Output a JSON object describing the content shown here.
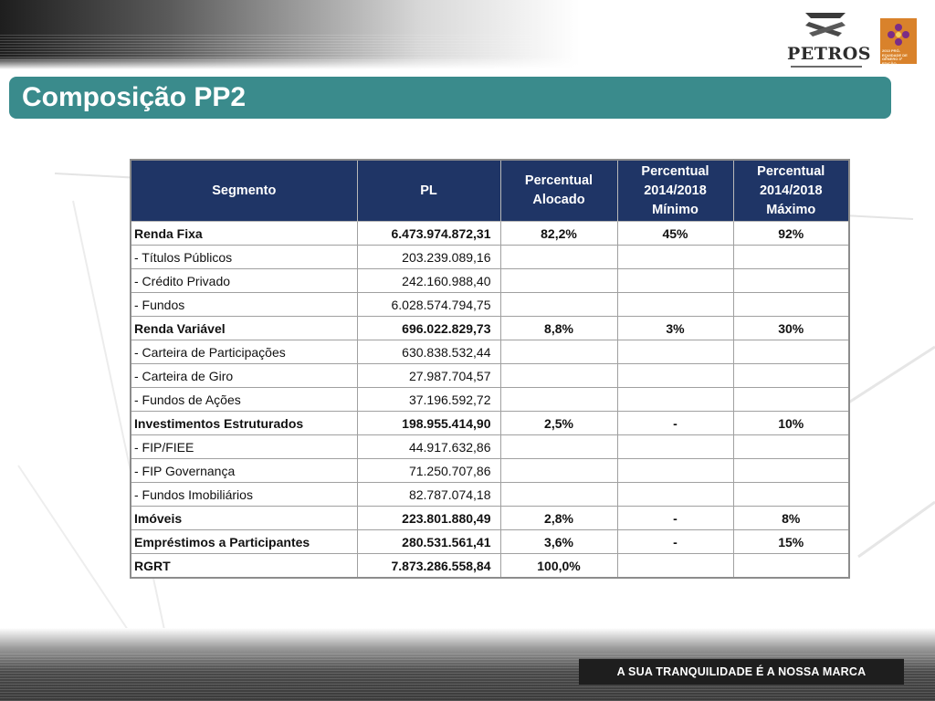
{
  "header": {
    "title": "Composição PP2",
    "logo_text": "PETROS",
    "seal_text": "2010 PRÓ-EQUIDADE DE GÊNERO 3ª EDIÇÃO"
  },
  "table": {
    "columns": [
      "Segmento",
      "PL",
      "Percentual Alocado",
      "Percentual 2014/2018 Mínimo",
      "Percentual 2014/2018 Máximo"
    ],
    "rows": [
      {
        "segmento": "Renda Fixa",
        "pl": "6.473.974.872,31",
        "pct": "82,2%",
        "min": "45%",
        "max": "92%",
        "bold": true
      },
      {
        "segmento": "- Títulos Públicos",
        "pl": "203.239.089,16",
        "pct": "",
        "min": "",
        "max": "",
        "bold": false
      },
      {
        "segmento": "- Crédito Privado",
        "pl": "242.160.988,40",
        "pct": "",
        "min": "",
        "max": "",
        "bold": false
      },
      {
        "segmento": "- Fundos",
        "pl": "6.028.574.794,75",
        "pct": "",
        "min": "",
        "max": "",
        "bold": false
      },
      {
        "segmento": "Renda Variável",
        "pl": "696.022.829,73",
        "pct": "8,8%",
        "min": "3%",
        "max": "30%",
        "bold": true
      },
      {
        "segmento": "- Carteira de Participações",
        "pl": "630.838.532,44",
        "pct": "",
        "min": "",
        "max": "",
        "bold": false
      },
      {
        "segmento": "- Carteira de Giro",
        "pl": "27.987.704,57",
        "pct": "",
        "min": "",
        "max": "",
        "bold": false
      },
      {
        "segmento": "- Fundos de Ações",
        "pl": "37.196.592,72",
        "pct": "",
        "min": "",
        "max": "",
        "bold": false
      },
      {
        "segmento": "Investimentos Estruturados",
        "pl": "198.955.414,90",
        "pct": "2,5%",
        "min": "-",
        "max": "10%",
        "bold": true
      },
      {
        "segmento": "- FIP/FIEE",
        "pl": "44.917.632,86",
        "pct": "",
        "min": "",
        "max": "",
        "bold": false
      },
      {
        "segmento": "- FIP Governança",
        "pl": "71.250.707,86",
        "pct": "",
        "min": "",
        "max": "",
        "bold": false
      },
      {
        "segmento": "- Fundos Imobiliários",
        "pl": "82.787.074,18",
        "pct": "",
        "min": "",
        "max": "",
        "bold": false
      },
      {
        "segmento": "Imóveis",
        "pl": "223.801.880,49",
        "pct": "2,8%",
        "min": "-",
        "max": "8%",
        "bold": true
      },
      {
        "segmento": "Empréstimos a Participantes",
        "pl": "280.531.561,41",
        "pct": "3,6%",
        "min": "-",
        "max": "15%",
        "bold": true
      },
      {
        "segmento": "RGRT",
        "pl": "7.873.286.558,84",
        "pct": "100,0%",
        "min": "",
        "max": "",
        "bold": true
      }
    ]
  },
  "footer": {
    "slogan": "A SUA TRANQUILIDADE É A NOSSA MARCA"
  },
  "colors": {
    "title_bar": "#3a8b8c",
    "table_header": "#1f3566",
    "seal": "#d9822b"
  }
}
